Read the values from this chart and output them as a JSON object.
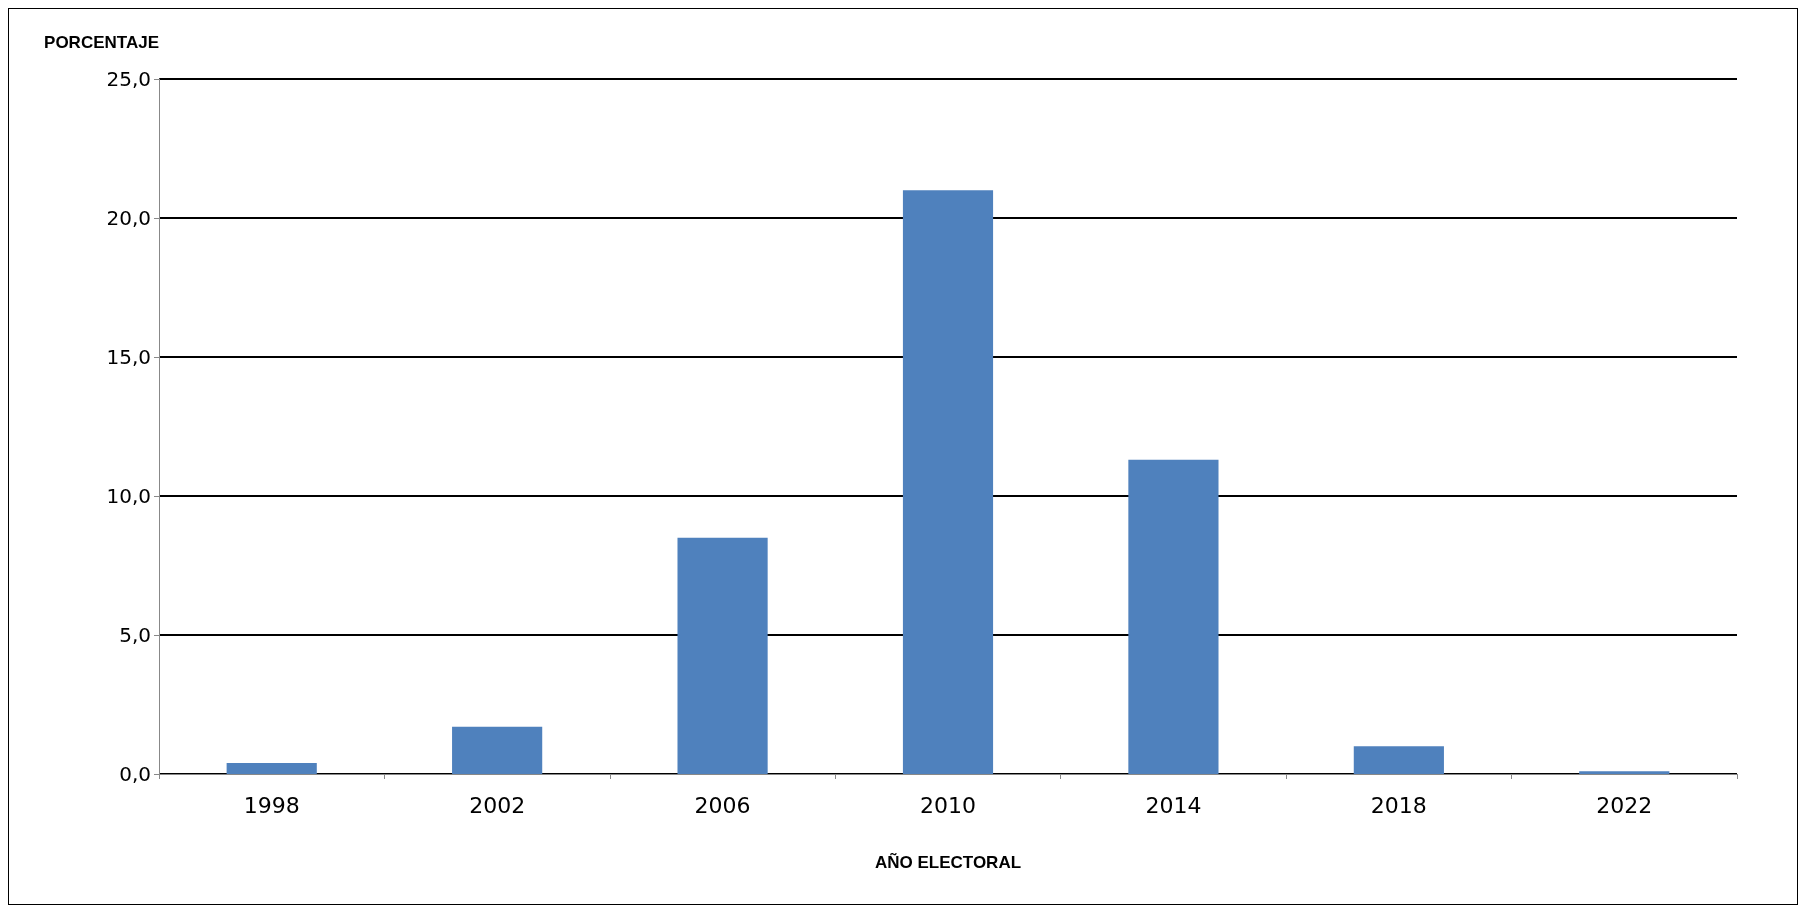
{
  "chart_data": {
    "type": "bar",
    "ylabel": "PORCENTAJE",
    "xlabel": "AÑO ELECTORAL",
    "categories": [
      "1998",
      "2002",
      "2006",
      "2010",
      "2014",
      "2018",
      "2022"
    ],
    "values": [
      0.4,
      1.7,
      8.5,
      21.0,
      11.3,
      1.0,
      0.1
    ],
    "color": "#4f81bd",
    "ylim": [
      0,
      25
    ],
    "yticks": [
      {
        "value": 0,
        "label": "0,0"
      },
      {
        "value": 5,
        "label": "5,0"
      },
      {
        "value": 10,
        "label": "10,0"
      },
      {
        "value": 15,
        "label": "15,0"
      },
      {
        "value": 20,
        "label": "20,0"
      },
      {
        "value": 25,
        "label": "25,0"
      }
    ],
    "grid": "y"
  }
}
